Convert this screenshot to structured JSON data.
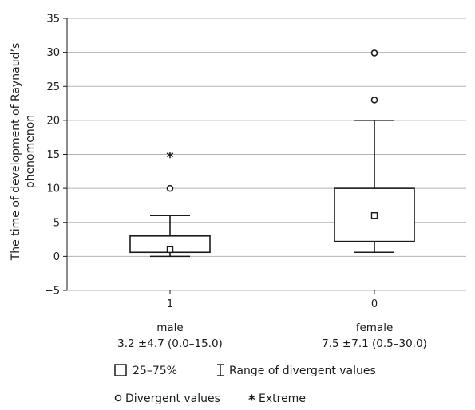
{
  "chart_data": {
    "type": "box",
    "title": "",
    "xlabel": "",
    "ylabel_lines": [
      "The time of development of Raynaud’s",
      "phenomenon"
    ],
    "ylim": [
      -5,
      35
    ],
    "yticks": [
      -5,
      0,
      5,
      10,
      15,
      20,
      25,
      30,
      35
    ],
    "yticklabels": [
      "−5",
      "0",
      "5",
      "10",
      "15",
      "20",
      "25",
      "30",
      "35"
    ],
    "grid": true,
    "categories": [
      "1",
      "0"
    ],
    "groups": [
      {
        "code": "1",
        "label": "male",
        "stats": "3.2 ±4.7 (0.0–15.0)",
        "whisker_low": 0,
        "q1": 0.6,
        "median": 1,
        "q3": 3,
        "whisker_high": 6,
        "divergent": [
          10
        ],
        "extreme": [
          14.8
        ]
      },
      {
        "code": "0",
        "label": "female",
        "stats": "7.5 ±7.1 (0.5–30.0)",
        "whisker_low": 0.6,
        "q1": 2.2,
        "median": 6,
        "q3": 10,
        "whisker_high": 20,
        "divergent": [
          23,
          29.9
        ],
        "extreme": []
      }
    ],
    "legend": {
      "box": "25–75%",
      "range": "Range of divergent values",
      "divergent": "Divergent values",
      "extreme": "Extreme"
    }
  }
}
